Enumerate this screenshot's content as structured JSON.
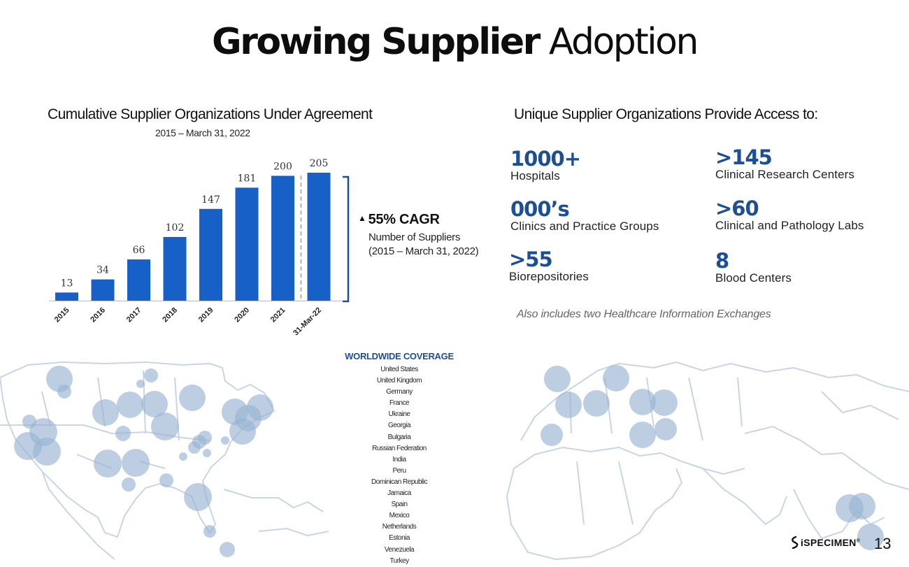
{
  "title": {
    "bold": "Growing Supplier",
    "normal": "Adoption"
  },
  "chart_data": {
    "type": "bar",
    "title": "Cumulative Supplier Organizations Under Agreement",
    "subtitle": "2015 – March 31, 2022",
    "categories": [
      "2015",
      "2016",
      "2017",
      "2018",
      "2019",
      "2020",
      "2021",
      "31-Mar-22"
    ],
    "values": [
      13,
      34,
      66,
      102,
      147,
      181,
      200,
      205
    ],
    "ylim": [
      0,
      205
    ],
    "bar_color": "#1660c8",
    "grid": false,
    "legend": "none"
  },
  "cagr": {
    "arrow": "▲",
    "headline": "55% CAGR",
    "line1": "Number of Suppliers",
    "line2": "(2015 – March 31, 2022)"
  },
  "access": {
    "title": "Unique Supplier Organizations Provide Access to:",
    "stats": [
      {
        "value": "1000+",
        "label": "Hospitals"
      },
      {
        "value": "000’s",
        "label": "Clinics and Practice Groups"
      },
      {
        "value": ">55",
        "label": "Biorepositories"
      },
      {
        "value": ">145",
        "label": "Clinical Research Centers"
      },
      {
        "value": ">60",
        "label": "Clinical and Pathology Labs"
      },
      {
        "value": "8",
        "label": "Blood Centers"
      }
    ],
    "note": "Also includes two Healthcare Information Exchanges"
  },
  "coverage": {
    "title": "WORLDWIDE COVERAGE",
    "countries": [
      "United States",
      "United Kingdom",
      "Germany",
      "France",
      "Ukraine",
      "Georgia",
      "Bulgaria",
      "Russian Federation",
      "India",
      "Peru",
      "Dominican Republic",
      "Jamaica",
      "Spain",
      "Mexico",
      "Netherlands",
      "Estonia",
      "Venezuela",
      "Turkey"
    ]
  },
  "footer": {
    "logo": "iSPECIMEN",
    "trademark": "®",
    "page": "13"
  },
  "colors": {
    "accent": "#1c4f96",
    "bar": "#1660c8",
    "bubble": "#9ab3d3",
    "map_outline": "#c9d5e3"
  }
}
